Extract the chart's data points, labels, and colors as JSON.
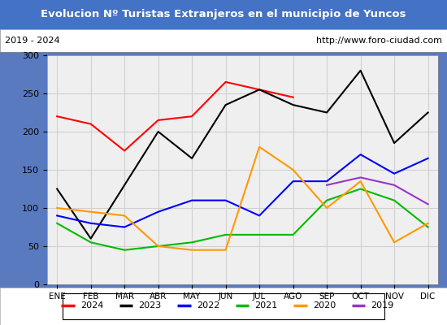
{
  "title": "Evolucion Nº Turistas Extranjeros en el municipio de Yuncos",
  "subtitle_left": "2019 - 2024",
  "subtitle_right": "http://www.foro-ciudad.com",
  "title_bg_color": "#4472c4",
  "title_text_color": "#ffffff",
  "months": [
    "ENE",
    "FEB",
    "MAR",
    "ABR",
    "MAY",
    "JUN",
    "JUL",
    "AGO",
    "SEP",
    "OCT",
    "NOV",
    "DIC"
  ],
  "ylim": [
    0,
    300
  ],
  "yticks": [
    0,
    50,
    100,
    150,
    200,
    250,
    300
  ],
  "series": {
    "2024": {
      "color": "#ff0000",
      "values": [
        220,
        210,
        175,
        215,
        220,
        265,
        255,
        245,
        null,
        null,
        null,
        null
      ]
    },
    "2023": {
      "color": "#000000",
      "values": [
        125,
        60,
        130,
        200,
        165,
        235,
        255,
        235,
        225,
        280,
        185,
        225
      ]
    },
    "2022": {
      "color": "#0000ff",
      "values": [
        90,
        80,
        75,
        95,
        110,
        110,
        90,
        135,
        135,
        170,
        145,
        165
      ]
    },
    "2021": {
      "color": "#00bb00",
      "values": [
        80,
        55,
        45,
        50,
        55,
        65,
        65,
        65,
        110,
        125,
        110,
        75
      ]
    },
    "2020": {
      "color": "#ff9900",
      "values": [
        100,
        95,
        90,
        50,
        45,
        45,
        180,
        150,
        100,
        135,
        55,
        80
      ]
    },
    "2019": {
      "color": "#9933cc",
      "values": [
        null,
        null,
        null,
        null,
        null,
        null,
        null,
        null,
        130,
        140,
        130,
        105
      ]
    }
  },
  "legend_order": [
    "2024",
    "2023",
    "2022",
    "2021",
    "2020",
    "2019"
  ],
  "grid_color": "#d0d0d0",
  "plot_bg_color": "#efefef",
  "border_color": "#000000"
}
